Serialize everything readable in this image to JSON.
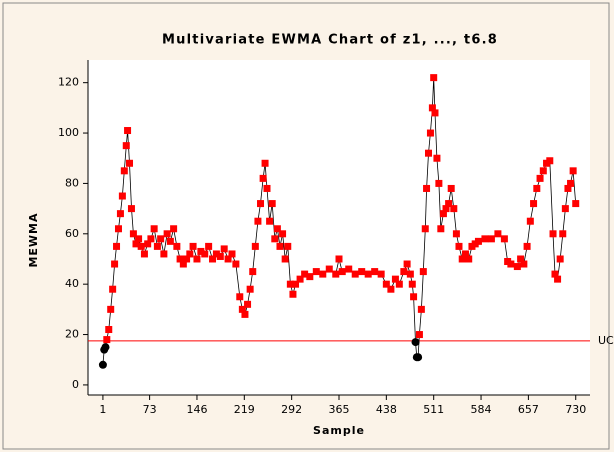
{
  "chart_data": {
    "type": "scatter",
    "title": "Multivariate EWMA Chart of z1, ..., t6.8",
    "xlabel": "Sample",
    "ylabel": "MEWMA",
    "ucl": 17.5,
    "ucl_label": "UC",
    "ucl_color": "#ff0000",
    "color": "#ff0000",
    "in_control_color": "#000000",
    "line_color": "#000000",
    "xlim": [
      -22,
      752
    ],
    "ylim": [
      -4,
      129
    ],
    "xticks": [
      1,
      73,
      146,
      219,
      292,
      365,
      438,
      511,
      584,
      657,
      730
    ],
    "yticks": [
      0,
      20,
      40,
      60,
      80,
      100,
      120
    ],
    "x": [
      1,
      3,
      5,
      7,
      10,
      13,
      16,
      19,
      22,
      25,
      28,
      31,
      34,
      37,
      39,
      42,
      45,
      48,
      52,
      56,
      60,
      65,
      70,
      75,
      80,
      85,
      90,
      95,
      100,
      105,
      110,
      115,
      120,
      125,
      130,
      135,
      140,
      146,
      152,
      158,
      164,
      170,
      176,
      182,
      188,
      194,
      200,
      206,
      212,
      216,
      220,
      224,
      228,
      232,
      236,
      240,
      244,
      248,
      251,
      254,
      258,
      262,
      266,
      270,
      274,
      278,
      282,
      286,
      290,
      294,
      298,
      305,
      312,
      320,
      330,
      340,
      350,
      360,
      365,
      370,
      380,
      390,
      400,
      410,
      420,
      430,
      438,
      445,
      452,
      458,
      465,
      470,
      475,
      478,
      480,
      483,
      485,
      487,
      489,
      492,
      495,
      498,
      500,
      503,
      506,
      509,
      511,
      513,
      516,
      519,
      522,
      526,
      530,
      534,
      538,
      542,
      546,
      550,
      555,
      560,
      565,
      570,
      575,
      580,
      590,
      600,
      610,
      620,
      625,
      630,
      640,
      645,
      650,
      655,
      660,
      665,
      670,
      675,
      680,
      685,
      690,
      695,
      698,
      702,
      706,
      710,
      714,
      718,
      722,
      726,
      730
    ],
    "values": [
      8,
      14,
      15,
      18,
      22,
      30,
      38,
      48,
      55,
      62,
      68,
      75,
      85,
      95,
      101,
      88,
      70,
      60,
      56,
      58,
      55,
      52,
      56,
      58,
      62,
      55,
      58,
      52,
      60,
      57,
      62,
      55,
      50,
      48,
      50,
      52,
      55,
      50,
      53,
      52,
      55,
      50,
      52,
      51,
      54,
      50,
      52,
      48,
      35,
      30,
      28,
      32,
      38,
      45,
      55,
      65,
      72,
      82,
      88,
      78,
      65,
      72,
      58,
      62,
      55,
      60,
      50,
      55,
      40,
      36,
      40,
      42,
      44,
      43,
      45,
      44,
      46,
      44,
      50,
      45,
      46,
      44,
      45,
      44,
      45,
      44,
      40,
      38,
      42,
      40,
      45,
      48,
      44,
      40,
      35,
      17,
      11,
      11,
      20,
      30,
      45,
      62,
      78,
      92,
      100,
      110,
      122,
      108,
      90,
      80,
      62,
      68,
      70,
      72,
      78,
      70,
      60,
      55,
      50,
      52,
      50,
      55,
      56,
      57,
      58,
      58,
      60,
      58,
      49,
      48,
      47,
      50,
      48,
      55,
      65,
      72,
      78,
      82,
      85,
      88,
      89,
      60,
      44,
      42,
      50,
      60,
      70,
      78,
      80,
      85,
      72
    ]
  }
}
